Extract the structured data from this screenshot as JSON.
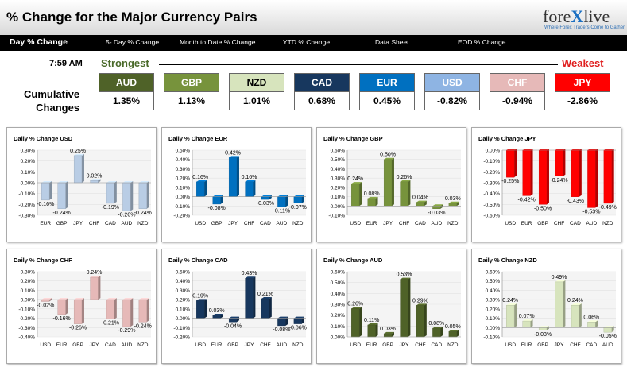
{
  "header": {
    "title": "% Change for the Major Currency Pairs",
    "logo": {
      "prefix": "fore",
      "x": "X",
      "suffix": "live",
      "tagline": "Where Forex Traders Come to Gather"
    }
  },
  "nav": [
    {
      "label": "Day % Change",
      "active": true
    },
    {
      "label": "5- Day % Change"
    },
    {
      "label": "Month to Date % Change"
    },
    {
      "label": "YTD % Change"
    },
    {
      "label": "Data Sheet"
    },
    {
      "label": "EOD % Change"
    }
  ],
  "time": "7:59 AM",
  "strongest_label": "Strongest",
  "weakest_label": "Weakest",
  "cumulative_label_1": "Cumulative",
  "cumulative_label_2": "Changes",
  "colors": {
    "strongest": "#4a6a2a",
    "weakest": "#e02020"
  },
  "ranking": [
    {
      "ccy": "AUD",
      "value": "1.35%",
      "bg": "#4f6228",
      "fg": "#ffffff"
    },
    {
      "ccy": "GBP",
      "value": "1.13%",
      "bg": "#77933c",
      "fg": "#ffffff"
    },
    {
      "ccy": "NZD",
      "value": "1.01%",
      "bg": "#d7e4bd",
      "fg": "#000000"
    },
    {
      "ccy": "CAD",
      "value": "0.68%",
      "bg": "#17375e",
      "fg": "#ffffff"
    },
    {
      "ccy": "EUR",
      "value": "0.45%",
      "bg": "#0070c0",
      "fg": "#ffffff"
    },
    {
      "ccy": "USD",
      "value": "-0.82%",
      "bg": "#8eb4e3",
      "fg": "#ffffff"
    },
    {
      "ccy": "CHF",
      "value": "-0.94%",
      "bg": "#e6b9b8",
      "fg": "#ffffff"
    },
    {
      "ccy": "JPY",
      "value": "-2.86%",
      "bg": "#ff0000",
      "fg": "#ffffff"
    }
  ],
  "chart_data": [
    {
      "type": "bar",
      "title": "Daily % Change USD",
      "color": "#b9cde5",
      "categories": [
        "EUR",
        "GBP",
        "JPY",
        "CHF",
        "CAD",
        "AUD",
        "NZD"
      ],
      "values": [
        -0.16,
        -0.24,
        0.25,
        0.02,
        -0.19,
        -0.26,
        -0.24
      ],
      "labels": [
        "-0.16%",
        "-0.24%",
        "0.25%",
        "0.02%",
        "-0.19%",
        "-0.26%",
        "-0.24%"
      ],
      "ticks": [
        "0.30%",
        "0.20%",
        "0.10%",
        "0.00%",
        "-0.10%",
        "-0.20%",
        "-0.30%"
      ],
      "ylim": [
        -0.3,
        0.3
      ]
    },
    {
      "type": "bar",
      "title": "Daily % Change EUR",
      "color": "#0070c0",
      "categories": [
        "USD",
        "GBP",
        "JPY",
        "CHF",
        "CAD",
        "AUD",
        "NZD"
      ],
      "values": [
        0.16,
        -0.08,
        0.42,
        0.16,
        -0.03,
        -0.11,
        -0.07
      ],
      "labels": [
        "0.16%",
        "-0.08%",
        "0.42%",
        "0.16%",
        "-0.03%",
        "-0.11%",
        "-0.07%"
      ],
      "ticks": [
        "0.50%",
        "0.40%",
        "0.30%",
        "0.20%",
        "0.10%",
        "0.00%",
        "-0.10%",
        "-0.20%"
      ],
      "ylim": [
        -0.2,
        0.5
      ]
    },
    {
      "type": "bar",
      "title": "Daily % Change GBP",
      "color": "#77933c",
      "categories": [
        "USD",
        "EUR",
        "JPY",
        "CHF",
        "CAD",
        "AUD",
        "NZD"
      ],
      "values": [
        0.24,
        0.08,
        0.5,
        0.26,
        0.04,
        -0.03,
        0.03
      ],
      "labels": [
        "0.24%",
        "0.08%",
        "0.50%",
        "0.26%",
        "0.04%",
        "-0.03%",
        "0.03%"
      ],
      "ticks": [
        "0.60%",
        "0.50%",
        "0.40%",
        "0.30%",
        "0.20%",
        "0.10%",
        "0.00%",
        "-0.10%"
      ],
      "ylim": [
        -0.1,
        0.6
      ]
    },
    {
      "type": "bar",
      "title": "Daily % Change JPY",
      "color": "#ff0000",
      "categories": [
        "USD",
        "EUR",
        "GBP",
        "CHF",
        "CAD",
        "AUD",
        "NZD"
      ],
      "values": [
        -0.25,
        -0.42,
        -0.5,
        -0.24,
        -0.43,
        -0.53,
        -0.49
      ],
      "labels": [
        "-0.25%",
        "-0.42%",
        "-0.50%",
        "-0.24%",
        "-0.43%",
        "-0.53%",
        "-0.49%"
      ],
      "ticks": [
        "0.00%",
        "-0.10%",
        "-0.20%",
        "-0.30%",
        "-0.40%",
        "-0.50%",
        "-0.60%"
      ],
      "ylim": [
        -0.6,
        0.0
      ]
    },
    {
      "type": "bar",
      "title": "Daily % Change CHF",
      "color": "#e6b9b8",
      "categories": [
        "USD",
        "EUR",
        "GBP",
        "JPY",
        "CAD",
        "AUD",
        "NZD"
      ],
      "values": [
        -0.02,
        -0.16,
        -0.26,
        0.24,
        -0.21,
        -0.29,
        -0.24
      ],
      "labels": [
        "-0.02%",
        "-0.16%",
        "-0.26%",
        "0.24%",
        "-0.21%",
        "-0.29%",
        "-0.24%"
      ],
      "ticks": [
        "0.30%",
        "0.20%",
        "0.10%",
        "0.00%",
        "-0.10%",
        "-0.20%",
        "-0.30%",
        "-0.40%"
      ],
      "ylim": [
        -0.4,
        0.3
      ]
    },
    {
      "type": "bar",
      "title": "Daily % Change CAD",
      "color": "#17375e",
      "categories": [
        "USD",
        "EUR",
        "GBP",
        "JPY",
        "CHF",
        "AUD",
        "NZD"
      ],
      "values": [
        0.19,
        0.03,
        -0.04,
        0.43,
        0.21,
        -0.08,
        -0.06
      ],
      "labels": [
        "0.19%",
        "0.03%",
        "-0.04%",
        "0.43%",
        "0.21%",
        "-0.08%",
        "-0.06%"
      ],
      "ticks": [
        "0.50%",
        "0.40%",
        "0.30%",
        "0.20%",
        "0.10%",
        "0.00%",
        "-0.10%",
        "-0.20%"
      ],
      "ylim": [
        -0.2,
        0.5
      ]
    },
    {
      "type": "bar",
      "title": "Daily % Change AUD",
      "color": "#4f6228",
      "categories": [
        "USD",
        "EUR",
        "GBP",
        "JPY",
        "CHF",
        "CAD",
        "NZD"
      ],
      "values": [
        0.26,
        0.11,
        0.03,
        0.53,
        0.29,
        0.08,
        0.05
      ],
      "labels": [
        "0.26%",
        "0.11%",
        "0.03%",
        "0.53%",
        "0.29%",
        "0.08%",
        "0.05%"
      ],
      "ticks": [
        "0.60%",
        "0.50%",
        "0.40%",
        "0.30%",
        "0.20%",
        "0.10%",
        "0.00%"
      ],
      "ylim": [
        0.0,
        0.6
      ]
    },
    {
      "type": "bar",
      "title": "Daily % Change NZD",
      "color": "#d7e4bd",
      "categories": [
        "USD",
        "EUR",
        "GBP",
        "JPY",
        "CHF",
        "CAD",
        "AUD"
      ],
      "values": [
        0.24,
        0.07,
        -0.03,
        0.49,
        0.24,
        0.06,
        -0.05
      ],
      "labels": [
        "0.24%",
        "0.07%",
        "-0.03%",
        "0.49%",
        "0.24%",
        "0.06%",
        "-0.05%"
      ],
      "ticks": [
        "0.60%",
        "0.50%",
        "0.40%",
        "0.30%",
        "0.20%",
        "0.10%",
        "0.00%",
        "-0.10%"
      ],
      "ylim": [
        -0.1,
        0.6
      ]
    }
  ]
}
